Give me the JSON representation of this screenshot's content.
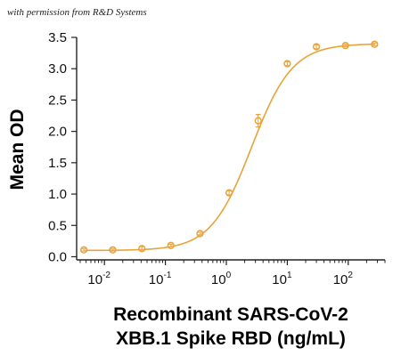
{
  "credit_note": "with permission from R&D Systems",
  "colors": {
    "series": "#E8A33A",
    "axis": "#222222"
  },
  "chart_data": {
    "type": "scatter",
    "title": "",
    "xlabel_lines": [
      "Recombinant SARS-CoV-2",
      "XBB.1 Spike RBD (ng/mL)"
    ],
    "ylabel": "Mean OD",
    "x_scale": "log",
    "xlim": [
      0.0035,
      400
    ],
    "ylim": [
      -0.05,
      3.5
    ],
    "yticks": [
      "0.0",
      "0.5",
      "1.0",
      "1.5",
      "2.0",
      "2.5",
      "3.0",
      "3.5"
    ],
    "xticks": [
      {
        "base": "10",
        "exp": "-2",
        "value": 0.01
      },
      {
        "base": "10",
        "exp": "-1",
        "value": 0.1
      },
      {
        "base": "10",
        "exp": "0",
        "value": 1
      },
      {
        "base": "10",
        "exp": "1",
        "value": 10
      },
      {
        "base": "10",
        "exp": "2",
        "value": 100
      }
    ],
    "grid": false,
    "legend": "none",
    "series": [
      {
        "x": [
          0.0046,
          0.0137,
          0.0412,
          0.123,
          0.37,
          1.11,
          3.33,
          10,
          30,
          90,
          270
        ],
        "y": [
          0.11,
          0.11,
          0.13,
          0.18,
          0.37,
          1.02,
          2.17,
          3.08,
          3.35,
          3.37,
          3.39
        ],
        "error": [
          0.02,
          0.02,
          0.03,
          0.02,
          0.02,
          0.03,
          0.1,
          0.03,
          0.03,
          0.02,
          0.02
        ],
        "fit": {
          "model": "4PL",
          "bottom": 0.1,
          "top": 3.4,
          "ec50": 2.6,
          "hill": 1.3
        }
      }
    ]
  }
}
